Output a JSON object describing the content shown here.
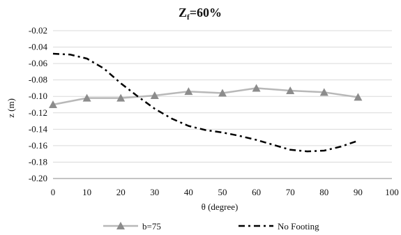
{
  "chart_data": {
    "type": "line",
    "title_main": "Z",
    "title_sub": "f",
    "title_rest": "=60%",
    "xlabel": "θ (degree)",
    "ylabel": "z (m)",
    "xlim": [
      0,
      100
    ],
    "ylim": [
      -0.2,
      -0.02
    ],
    "x_ticks": [
      "0",
      "10",
      "20",
      "30",
      "40",
      "50",
      "60",
      "70",
      "80",
      "90",
      "100"
    ],
    "y_ticks": [
      "-0.02",
      "-0.04",
      "-0.06",
      "-0.08",
      "-0.10",
      "-0.12",
      "-0.14",
      "-0.16",
      "-0.18",
      "-0.20"
    ],
    "grid": "horizontal",
    "legend_position": "bottom",
    "series": [
      {
        "name": "b=75",
        "style": "solid-gray-triangles",
        "color": "#b8b8b8",
        "marker_color": "#8c8c8c",
        "x": [
          0,
          10,
          20,
          30,
          40,
          50,
          60,
          70,
          80,
          90
        ],
        "y": [
          -0.11,
          -0.102,
          -0.102,
          -0.099,
          -0.094,
          -0.096,
          -0.09,
          -0.093,
          -0.095,
          -0.101
        ]
      },
      {
        "name": "No Footing",
        "style": "dash-dot-black",
        "color": "#000000",
        "x": [
          0,
          5,
          10,
          15,
          20,
          25,
          30,
          35,
          40,
          45,
          50,
          55,
          60,
          65,
          70,
          75,
          80,
          85,
          90
        ],
        "y": [
          -0.048,
          -0.049,
          -0.054,
          -0.066,
          -0.084,
          -0.1,
          -0.115,
          -0.127,
          -0.136,
          -0.141,
          -0.144,
          -0.148,
          -0.153,
          -0.159,
          -0.165,
          -0.167,
          -0.166,
          -0.161,
          -0.154
        ]
      }
    ]
  }
}
